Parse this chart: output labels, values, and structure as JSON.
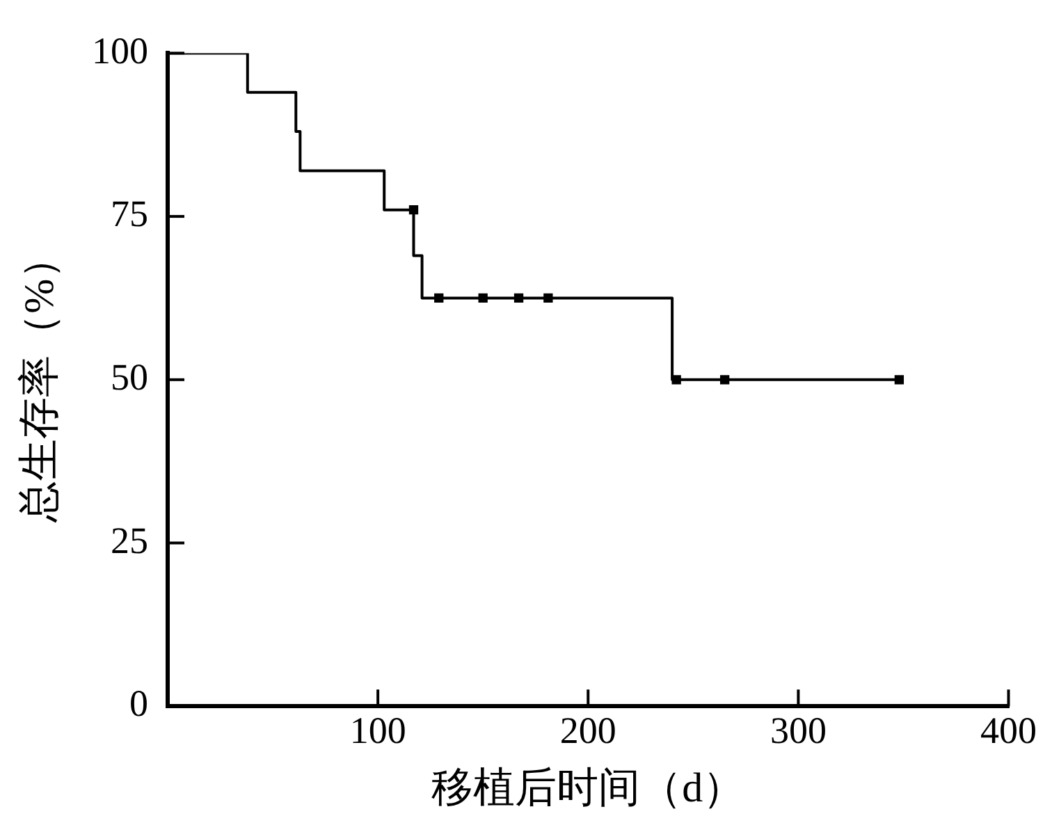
{
  "chart_data": {
    "type": "step",
    "xlabel": "移植后时间（d）",
    "ylabel": "总生存率（%）",
    "xlim": [
      0,
      400
    ],
    "xticks": [
      100,
      200,
      300,
      400
    ],
    "ylim": [
      0,
      100
    ],
    "yticks": [
      0,
      25,
      50,
      75,
      100
    ],
    "grid": false,
    "legend": false,
    "series": [
      {
        "type": "step",
        "color": "#000000",
        "x": [
          0,
          38,
          61,
          63,
          103,
          117,
          121,
          240,
          349
        ],
        "values": [
          100,
          94,
          88,
          82,
          76,
          69,
          62.5,
          50,
          50
        ]
      },
      {
        "type": "scatter",
        "color": "#000000",
        "marker": "square",
        "x": [
          117,
          129,
          150,
          167,
          181,
          242,
          265,
          348
        ],
        "values": [
          76,
          62.5,
          62.5,
          62.5,
          62.5,
          50,
          50,
          50
        ]
      }
    ]
  }
}
